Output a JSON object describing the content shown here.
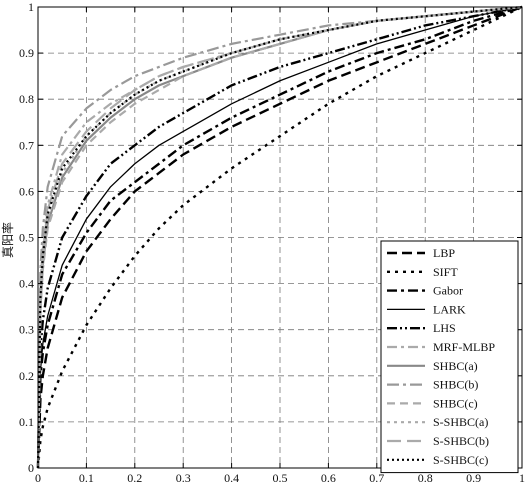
{
  "chart_data": {
    "type": "line",
    "title": "",
    "xlabel": "",
    "ylabel": "真阳率",
    "xlim": [
      0,
      1
    ],
    "ylim": [
      0,
      1
    ],
    "grid": true,
    "legend_position": "bottom-right",
    "xticks": [
      "0",
      "0.1",
      "0.2",
      "0.3",
      "0.4",
      "0.5",
      "0.6",
      "0.7",
      "0.8",
      "0.9",
      "1"
    ],
    "yticks": [
      "0",
      "0.1",
      "0.2",
      "0.3",
      "0.4",
      "0.5",
      "0.6",
      "0.7",
      "0.8",
      "0.9",
      "1"
    ],
    "series": [
      {
        "name": "LBP",
        "color": "#000000",
        "style": "dash-thick",
        "x": [
          0,
          0.005,
          0.01,
          0.02,
          0.05,
          0.1,
          0.15,
          0.2,
          0.25,
          0.3,
          0.4,
          0.5,
          0.6,
          0.7,
          0.8,
          0.9,
          1.0
        ],
        "y": [
          0,
          0.15,
          0.2,
          0.26,
          0.37,
          0.47,
          0.54,
          0.6,
          0.64,
          0.68,
          0.74,
          0.79,
          0.84,
          0.88,
          0.92,
          0.96,
          1.0
        ]
      },
      {
        "name": "SIFT",
        "color": "#000000",
        "style": "dot-thick",
        "x": [
          0,
          0.005,
          0.01,
          0.02,
          0.05,
          0.1,
          0.15,
          0.2,
          0.25,
          0.3,
          0.4,
          0.5,
          0.6,
          0.7,
          0.8,
          0.9,
          1.0
        ],
        "y": [
          0,
          0.06,
          0.09,
          0.13,
          0.21,
          0.31,
          0.39,
          0.46,
          0.52,
          0.57,
          0.65,
          0.72,
          0.79,
          0.85,
          0.9,
          0.95,
          1.0
        ]
      },
      {
        "name": "Gabor",
        "color": "#000000",
        "style": "dashdot-thick",
        "x": [
          0,
          0.005,
          0.01,
          0.02,
          0.05,
          0.1,
          0.15,
          0.2,
          0.25,
          0.3,
          0.4,
          0.5,
          0.6,
          0.7,
          0.8,
          0.9,
          1.0
        ],
        "y": [
          0,
          0.2,
          0.25,
          0.31,
          0.42,
          0.51,
          0.58,
          0.62,
          0.66,
          0.7,
          0.76,
          0.81,
          0.86,
          0.9,
          0.93,
          0.97,
          1.0
        ]
      },
      {
        "name": "LARK",
        "color": "#000000",
        "style": "solid",
        "x": [
          0,
          0.005,
          0.01,
          0.02,
          0.05,
          0.1,
          0.15,
          0.2,
          0.25,
          0.3,
          0.4,
          0.5,
          0.6,
          0.7,
          0.8,
          0.9,
          1.0
        ],
        "y": [
          0,
          0.21,
          0.27,
          0.33,
          0.44,
          0.54,
          0.61,
          0.66,
          0.7,
          0.73,
          0.79,
          0.84,
          0.88,
          0.92,
          0.95,
          0.98,
          1.0
        ]
      },
      {
        "name": "LHS",
        "color": "#000000",
        "style": "dashdotdot-thick",
        "x": [
          0,
          0.005,
          0.01,
          0.02,
          0.05,
          0.1,
          0.15,
          0.2,
          0.25,
          0.3,
          0.4,
          0.5,
          0.6,
          0.7,
          0.8,
          0.9,
          1.0
        ],
        "y": [
          0,
          0.26,
          0.32,
          0.39,
          0.5,
          0.59,
          0.66,
          0.7,
          0.74,
          0.77,
          0.83,
          0.87,
          0.9,
          0.93,
          0.96,
          0.98,
          1.0
        ]
      },
      {
        "name": "MRF-MLBP",
        "color": "#aaaaaa",
        "style": "dashdot-gray",
        "x": [
          0,
          0.005,
          0.01,
          0.02,
          0.05,
          0.1,
          0.15,
          0.2,
          0.25,
          0.3,
          0.4,
          0.5,
          0.6,
          0.7,
          0.8,
          0.9,
          1.0
        ],
        "y": [
          0,
          0.4,
          0.48,
          0.57,
          0.68,
          0.75,
          0.79,
          0.82,
          0.85,
          0.87,
          0.9,
          0.93,
          0.95,
          0.97,
          0.98,
          0.99,
          1.0
        ]
      },
      {
        "name": "SHBC(a)",
        "color": "#888888",
        "style": "solid-gray",
        "x": [
          0,
          0.005,
          0.01,
          0.02,
          0.05,
          0.1,
          0.15,
          0.2,
          0.25,
          0.3,
          0.4,
          0.5,
          0.6,
          0.7,
          0.8,
          0.9,
          1.0
        ],
        "y": [
          0,
          0.35,
          0.44,
          0.53,
          0.63,
          0.71,
          0.76,
          0.8,
          0.83,
          0.85,
          0.89,
          0.92,
          0.95,
          0.97,
          0.98,
          0.99,
          1.0
        ]
      },
      {
        "name": "SHBC(b)",
        "color": "#999999",
        "style": "dashdot-gray2",
        "x": [
          0,
          0.005,
          0.01,
          0.02,
          0.05,
          0.1,
          0.15,
          0.2,
          0.25,
          0.3,
          0.4,
          0.5,
          0.6,
          0.7,
          0.8,
          0.9,
          1.0
        ],
        "y": [
          0,
          0.43,
          0.52,
          0.61,
          0.72,
          0.78,
          0.82,
          0.85,
          0.87,
          0.89,
          0.92,
          0.94,
          0.96,
          0.97,
          0.98,
          0.99,
          1.0
        ]
      },
      {
        "name": "SHBC(c)",
        "color": "#aaaaaa",
        "style": "dash-gray",
        "x": [
          0,
          0.005,
          0.01,
          0.02,
          0.05,
          0.1,
          0.15,
          0.2,
          0.25,
          0.3,
          0.4,
          0.5,
          0.6,
          0.7,
          0.8,
          0.9,
          1.0
        ],
        "y": [
          0,
          0.34,
          0.43,
          0.52,
          0.62,
          0.7,
          0.75,
          0.79,
          0.82,
          0.85,
          0.89,
          0.92,
          0.95,
          0.97,
          0.98,
          0.99,
          1.0
        ]
      },
      {
        "name": "S-SHBC(a)",
        "color": "#aaaaaa",
        "style": "dot-gray",
        "x": [
          0,
          0.005,
          0.01,
          0.02,
          0.05,
          0.1,
          0.15,
          0.2,
          0.25,
          0.3,
          0.4,
          0.5,
          0.6,
          0.7,
          0.8,
          0.9,
          1.0
        ],
        "y": [
          0,
          0.36,
          0.45,
          0.54,
          0.64,
          0.72,
          0.77,
          0.81,
          0.84,
          0.86,
          0.9,
          0.93,
          0.95,
          0.97,
          0.98,
          0.99,
          1.0
        ]
      },
      {
        "name": "S-SHBC(b)",
        "color": "#aaaaaa",
        "style": "longdash-gray",
        "x": [
          0,
          0.005,
          0.01,
          0.02,
          0.05,
          0.1,
          0.15,
          0.2,
          0.25,
          0.3,
          0.4,
          0.5,
          0.6,
          0.7,
          0.8,
          0.9,
          1.0
        ],
        "y": [
          0,
          0.38,
          0.47,
          0.56,
          0.66,
          0.73,
          0.78,
          0.82,
          0.85,
          0.87,
          0.9,
          0.93,
          0.95,
          0.97,
          0.98,
          0.99,
          1.0
        ]
      },
      {
        "name": "S-SHBC(c)",
        "color": "#000000",
        "style": "dot-black",
        "x": [
          0,
          0.005,
          0.01,
          0.02,
          0.05,
          0.1,
          0.15,
          0.2,
          0.25,
          0.3,
          0.4,
          0.5,
          0.6,
          0.7,
          0.8,
          0.9,
          1.0
        ],
        "y": [
          0,
          0.37,
          0.46,
          0.55,
          0.65,
          0.72,
          0.77,
          0.81,
          0.84,
          0.86,
          0.9,
          0.93,
          0.95,
          0.97,
          0.98,
          0.99,
          1.0
        ]
      }
    ]
  }
}
